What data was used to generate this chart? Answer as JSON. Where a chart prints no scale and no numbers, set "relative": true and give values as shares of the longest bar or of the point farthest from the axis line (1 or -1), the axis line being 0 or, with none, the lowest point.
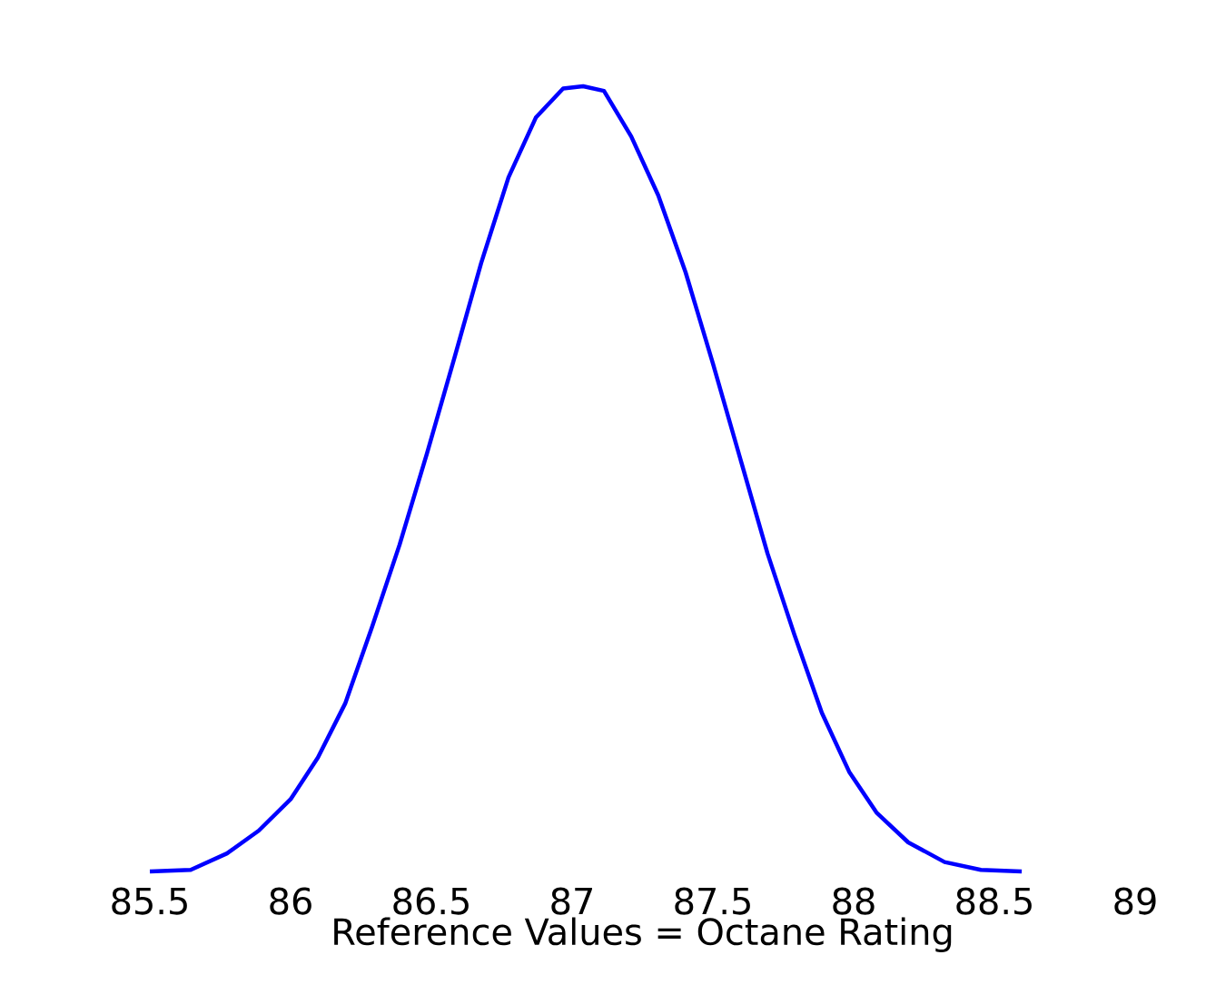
{
  "chart_data": {
    "type": "line",
    "xlabel": "Reference Values = Octane Rating",
    "relative": true,
    "xlim": [
      85.5,
      89
    ],
    "xticks": [
      85.5,
      86,
      86.5,
      87,
      87.5,
      88,
      88.5,
      89
    ],
    "series": [
      {
        "color": "#0000ff",
        "x": [
          85.5,
          85.645,
          85.774,
          85.887,
          86.0,
          86.097,
          86.194,
          86.29,
          86.387,
          86.484,
          86.581,
          86.677,
          86.774,
          86.871,
          86.968,
          87.039,
          87.113,
          87.21,
          87.306,
          87.403,
          87.5,
          87.597,
          87.694,
          87.79,
          87.887,
          87.984,
          88.081,
          88.194,
          88.323,
          88.452,
          88.597
        ],
        "values": [
          0,
          0.002,
          0.023,
          0.052,
          0.092,
          0.145,
          0.214,
          0.312,
          0.416,
          0.532,
          0.653,
          0.775,
          0.884,
          0.96,
          0.997,
          1,
          0.994,
          0.936,
          0.861,
          0.763,
          0.647,
          0.526,
          0.405,
          0.301,
          0.202,
          0.127,
          0.075,
          0.037,
          0.012,
          0.002,
          0
        ]
      }
    ]
  }
}
